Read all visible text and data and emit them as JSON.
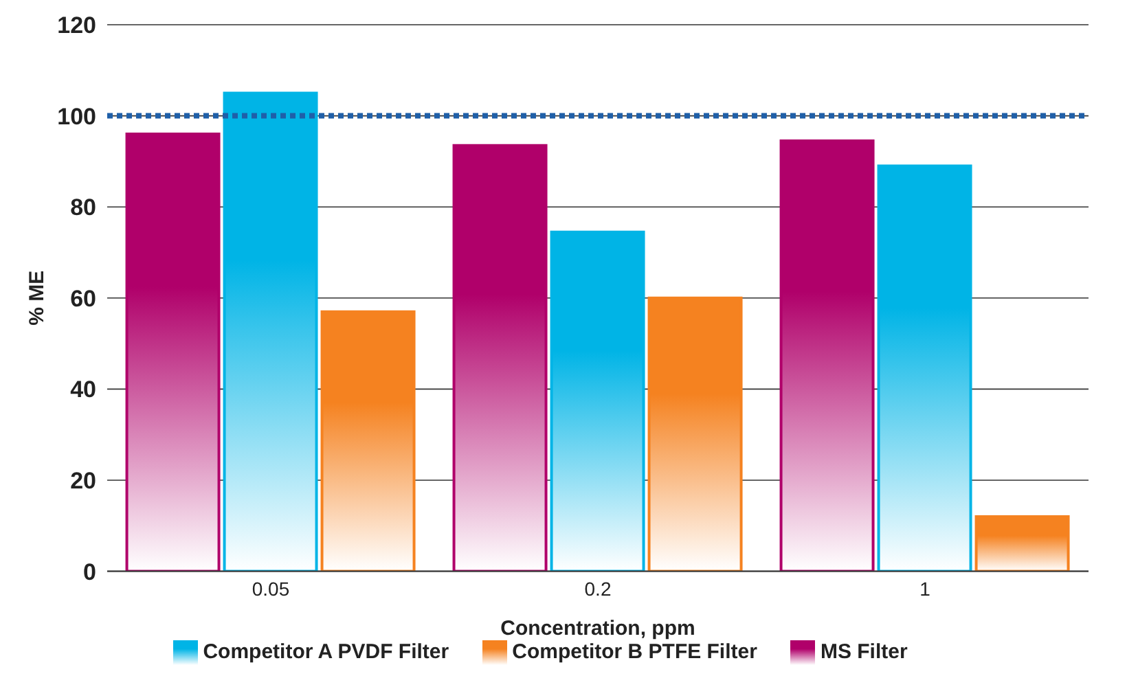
{
  "chart_data": {
    "type": "bar",
    "xlabel": "Concentration, ppm",
    "ylabel": "% ME",
    "categories": [
      "0.05",
      "0.2",
      "1"
    ],
    "series": [
      {
        "name": "MS Filter",
        "color": "#b0006a",
        "values": [
          96,
          93.5,
          94.5
        ]
      },
      {
        "name": "Competitor A PVDF Filter",
        "color": "#00b4e6",
        "values": [
          105,
          74.5,
          89
        ]
      },
      {
        "name": "Competitor B PTFE Filter",
        "color": "#f58220",
        "values": [
          57,
          60,
          12
        ]
      }
    ],
    "ylim": [
      0,
      120
    ],
    "yticks": [
      0,
      20,
      40,
      60,
      80,
      100,
      120
    ],
    "grid": "y",
    "legend": "bottom",
    "ref_lines": [
      {
        "axis": "y",
        "value": 100,
        "color": "#1f5fa8",
        "line_style": "dotted"
      }
    ]
  }
}
